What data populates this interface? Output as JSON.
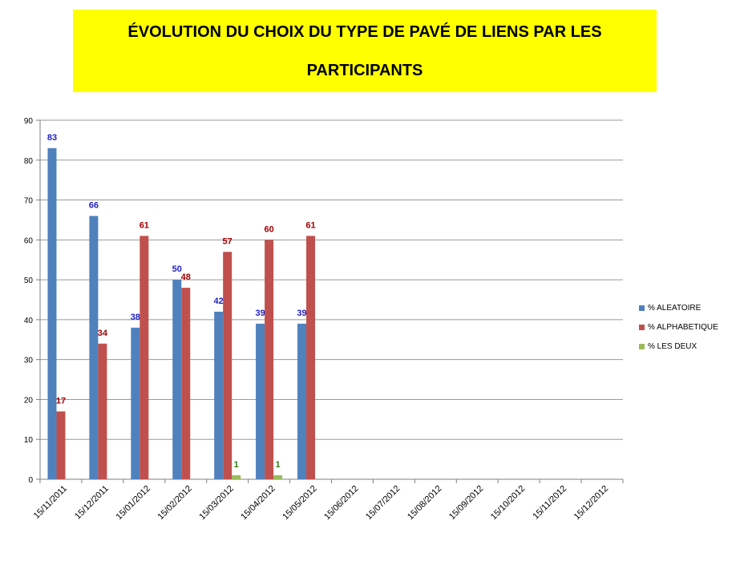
{
  "title": {
    "line1": "ÉVOLUTION DU CHOIX DU TYPE DE PAVÉ DE LIENS PAR LES",
    "line2": "PARTICIPANTS"
  },
  "colors": {
    "title_bg": "#ffff00",
    "aleatoire": "#4f81bd",
    "alphabetique": "#c0504d",
    "les_deux": "#9bbb59",
    "label_aleatoire": "#1f1fbf",
    "label_alphabetique": "#a00000",
    "label_les_deux": "#2e7d12",
    "grid": "#9a9a9a"
  },
  "chart_data": {
    "type": "bar",
    "title": "ÉVOLUTION DU CHOIX DU TYPE DE PAVÉ DE LIENS PAR LES PARTICIPANTS",
    "xlabel": "",
    "ylabel": "",
    "ylim": [
      0,
      90
    ],
    "yticks": [
      0,
      10,
      20,
      30,
      40,
      50,
      60,
      70,
      80,
      90
    ],
    "grid": true,
    "legend_position": "right",
    "categories": [
      "15/11/2011",
      "15/12/2011",
      "15/01/2012",
      "15/02/2012",
      "15/03/2012",
      "15/04/2012",
      "15/05/2012",
      "15/06/2012",
      "15/07/2012",
      "15/08/2012",
      "15/09/2012",
      "15/10/2012",
      "15/11/2012",
      "15/12/2012"
    ],
    "series": [
      {
        "name": "% ALEATOIRE",
        "values": [
          83,
          66,
          38,
          50,
          42,
          39,
          39,
          null,
          null,
          null,
          null,
          null,
          null,
          null
        ],
        "labels": [
          "83",
          "66",
          "38",
          "50",
          "42",
          "39",
          "39",
          "",
          "",
          "",
          "",
          "",
          "",
          ""
        ]
      },
      {
        "name": "% ALPHABETIQUE",
        "values": [
          17,
          34,
          61,
          48,
          57,
          60,
          61,
          null,
          null,
          null,
          null,
          null,
          null,
          null
        ],
        "labels": [
          "17",
          "34",
          "61",
          "48",
          "57",
          "60",
          "61",
          "",
          "",
          "",
          "",
          "",
          "",
          ""
        ]
      },
      {
        "name": "%  LES DEUX",
        "values": [
          null,
          null,
          null,
          null,
          1,
          1,
          null,
          null,
          null,
          null,
          null,
          null,
          null,
          null
        ],
        "labels": [
          "",
          "",
          "",
          "",
          "1",
          "1",
          "",
          "",
          "",
          "",
          "",
          "",
          "",
          ""
        ]
      }
    ]
  }
}
